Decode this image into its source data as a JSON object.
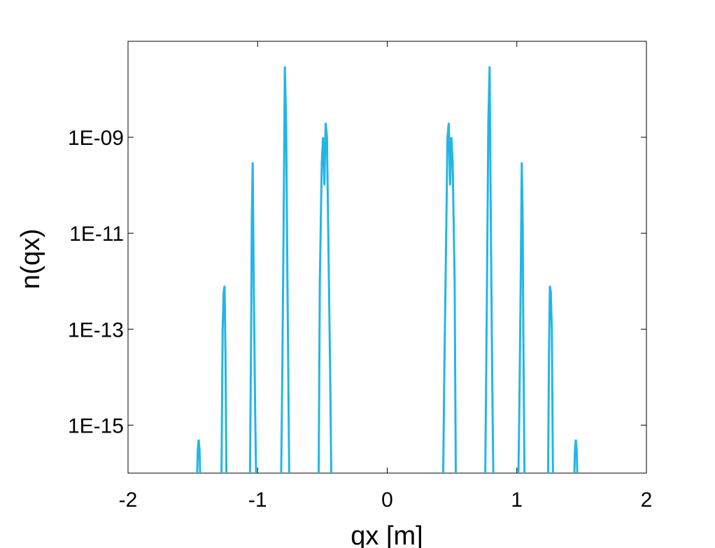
{
  "chart_data": {
    "type": "line",
    "x_label": "qx [m]",
    "y_label": "n(qx)",
    "y_scale": "log",
    "xlim": [
      -2,
      2
    ],
    "ylim": [
      1e-16,
      1e-07
    ],
    "xticks": [
      -2,
      -1,
      0,
      1,
      2
    ],
    "yticks": [
      {
        "value": 1e-15,
        "label": "1E-15"
      },
      {
        "value": 1e-13,
        "label": "1E-13"
      },
      {
        "value": 1e-11,
        "label": "1E-11"
      },
      {
        "value": 1e-09,
        "label": "1E-09"
      }
    ],
    "x": [
      -2,
      -1.47,
      -1.462,
      -1.455,
      -1.448,
      -1.44,
      -1.28,
      -1.27,
      -1.262,
      -1.255,
      -1.248,
      -1.24,
      -1.06,
      -1.05,
      -1.045,
      -1.038,
      -1.03,
      -1.02,
      -1.01,
      -0.82,
      -0.81,
      -0.8,
      -0.79,
      -0.78,
      -0.77,
      -0.755,
      -0.53,
      -0.52,
      -0.505,
      -0.495,
      -0.485,
      -0.475,
      -0.465,
      -0.455,
      -0.44,
      -0.43,
      0.43,
      0.44,
      0.455,
      0.465,
      0.475,
      0.485,
      0.495,
      0.505,
      0.52,
      0.53,
      0.755,
      0.77,
      0.78,
      0.79,
      0.8,
      0.81,
      0.82,
      1.01,
      1.02,
      1.03,
      1.038,
      1.045,
      1.05,
      1.06,
      1.24,
      1.248,
      1.255,
      1.262,
      1.27,
      1.28,
      1.44,
      1.448,
      1.455,
      1.462,
      1.47,
      2
    ],
    "series": [
      {
        "color": "#22b6e6",
        "values": [
          0,
          0,
          3e-16,
          5e-16,
          3e-16,
          0,
          0,
          1e-13,
          6e-13,
          8e-13,
          3e-14,
          0,
          0,
          1e-13,
          2e-11,
          3e-10,
          1e-12,
          3e-15,
          0,
          0,
          1e-14,
          1e-11,
          3e-08,
          2e-09,
          1e-12,
          0,
          0,
          1e-12,
          3e-10,
          1e-09,
          1e-10,
          2e-09,
          1e-09,
          1e-11,
          1e-14,
          0,
          0,
          1e-14,
          1e-11,
          1e-09,
          2e-09,
          1e-10,
          1e-09,
          3e-10,
          1e-12,
          0,
          0,
          1e-12,
          2e-09,
          3e-08,
          1e-11,
          1e-14,
          0,
          0,
          3e-15,
          1e-12,
          3e-10,
          2e-11,
          1e-13,
          0,
          0,
          3e-14,
          8e-13,
          6e-13,
          1e-13,
          0,
          0,
          3e-16,
          5e-16,
          3e-16,
          0,
          0
        ]
      }
    ]
  }
}
